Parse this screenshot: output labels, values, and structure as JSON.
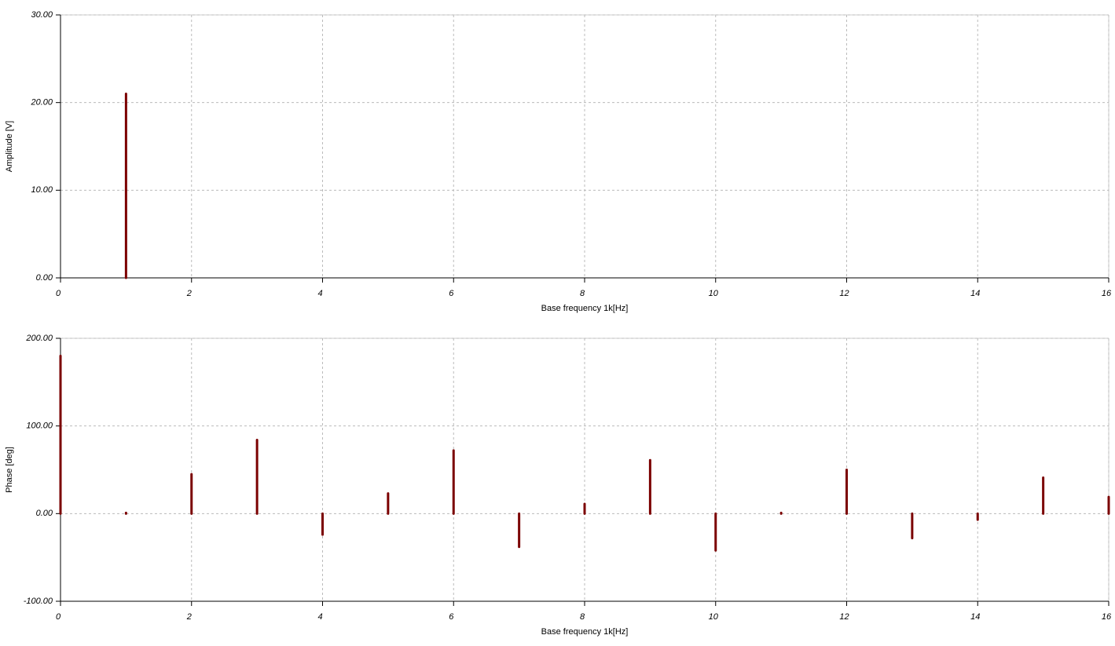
{
  "chart_data": [
    {
      "type": "stem",
      "ylabel": "Amplitude [V]",
      "xlabel": "Base frequency 1k[Hz]",
      "x": [
        1
      ],
      "values": [
        21
      ],
      "color": "#7b0000",
      "xlim": [
        0,
        16
      ],
      "xticks": [
        0,
        2,
        4,
        6,
        8,
        10,
        12,
        14,
        16
      ],
      "ylim": [
        0,
        30
      ],
      "yticks": [
        {
          "value": 0,
          "label": "0.00"
        },
        {
          "value": 10,
          "label": "10.00"
        },
        {
          "value": 20,
          "label": "20.00"
        },
        {
          "value": 30,
          "label": "30.00"
        }
      ],
      "grid": true
    },
    {
      "type": "stem",
      "ylabel": "Phase [deg]",
      "xlabel": "Base frequency 1k[Hz]",
      "x": [
        0,
        1,
        2,
        3,
        4,
        5,
        6,
        7,
        8,
        9,
        10,
        11,
        12,
        13,
        14,
        15,
        16
      ],
      "values": [
        180,
        0,
        45,
        84,
        -24,
        23,
        72,
        -38,
        11,
        61,
        -42,
        0,
        50,
        -28,
        -7,
        41,
        19
      ],
      "color": "#7b0000",
      "xlim": [
        0,
        16
      ],
      "xticks": [
        0,
        2,
        4,
        6,
        8,
        10,
        12,
        14,
        16
      ],
      "ylim": [
        -100,
        200
      ],
      "yticks": [
        {
          "value": -100,
          "label": "-100.00"
        },
        {
          "value": 0,
          "label": "0.00"
        },
        {
          "value": 100,
          "label": "100.00"
        },
        {
          "value": 200,
          "label": "200.00"
        }
      ],
      "grid": true
    }
  ]
}
